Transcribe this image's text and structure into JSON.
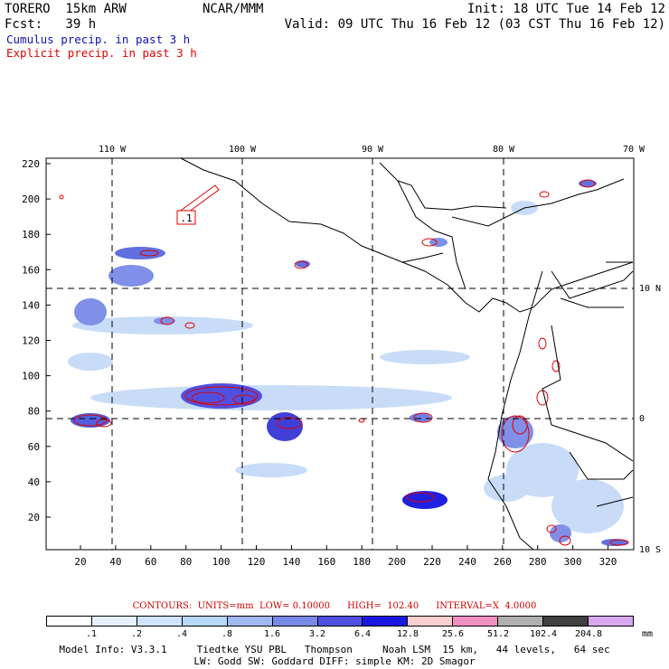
{
  "header": {
    "model": "TORERO  15km ARW",
    "center": "NCAR/MMM",
    "init": "Init: 18 UTC Tue 14 Feb 12",
    "fcst": "Fcst:   39 h",
    "valid": "Valid: 09 UTC Thu 16 Feb 12 (03 CST Thu 16 Feb 12)"
  },
  "legend": {
    "cumulus": "Cumulus precip. in past 3 h",
    "explicit": "Explicit precip. in past 3 h",
    "cumulus_color": "#1010c0",
    "explicit_color": "#e00000"
  },
  "map": {
    "top_lon_labels": [
      "110 W",
      "100 W",
      "90 W",
      "80 W",
      "70 W"
    ],
    "left_ticks": [
      "220",
      "200",
      "180",
      "160",
      "140",
      "120",
      "100",
      "80",
      "60",
      "40",
      "20"
    ],
    "bottom_ticks": [
      "20",
      "40",
      "60",
      "80",
      "100",
      "120",
      "140",
      "160",
      "180",
      "200",
      "220",
      "240",
      "260",
      "280",
      "300",
      "320"
    ],
    "right_lat_labels": [
      "10 N",
      "0",
      "10 S"
    ],
    "box_label": ".1"
  },
  "contours_line": "CONTOURS:  UNITS=mm  LOW= 0.10000      HIGH=  102.40      INTERVAL=X  4.0000",
  "colorbar": {
    "colors": [
      "#ffffff",
      "#e6f0ff",
      "#d0e4ff",
      "#b8d8f8",
      "#9fb8f0",
      "#7888e8",
      "#5050e0",
      "#1818e0",
      "#f8d0d0",
      "#f090c0",
      "#b0b0b0",
      "#404040",
      "#d8a8f0"
    ],
    "labels": [
      ".1",
      ".2",
      ".4",
      ".8",
      "1.6",
      "3.2",
      "6.4",
      "12.8",
      "25.6",
      "51.2",
      "102.4",
      "204.8"
    ],
    "units": "mm"
  },
  "info": {
    "line1": "Model Info: V3.3.1     Tiedtke YSU PBL   Thompson     Noah LSM  15 km,   44 levels,   64 sec",
    "line2": "LW: Godd SW: Goddard DIFF: simple KM: 2D Smagor"
  }
}
